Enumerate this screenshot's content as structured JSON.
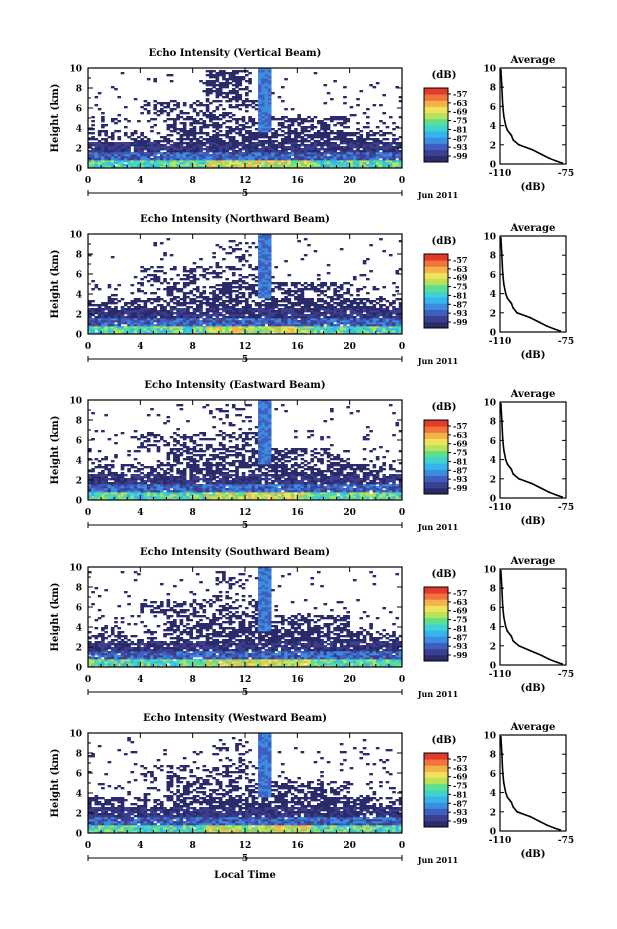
{
  "chart_data": {
    "type": "heatmap",
    "units_label": "(dB)",
    "colorbar_ticks": [
      "-57",
      "-63",
      "-69",
      "-75",
      "-81",
      "-87",
      "-93",
      "-99"
    ],
    "colors": [
      "#2a2b6b",
      "#3c3f8f",
      "#3f5fc0",
      "#3c8de0",
      "#35b4ee",
      "#3fd2cf",
      "#5ce08f",
      "#b6e35a",
      "#f0e25a",
      "#f5b24a",
      "#f0743c",
      "#e23a2c"
    ],
    "xlabel": "Local Time",
    "ylabel": "Height (km)",
    "xticks": [
      "0",
      "4",
      "8",
      "12",
      "16",
      "20",
      "0"
    ],
    "xlim": [
      0,
      24
    ],
    "ylim": [
      0,
      10
    ],
    "yticks": [
      "0",
      "2",
      "4",
      "6",
      "8",
      "10"
    ],
    "date_label": "Jun 2011",
    "day_label": "5",
    "avg_title": "Average",
    "avg_xlabel": "(dB)",
    "avg_xticks": [
      "-110",
      "-75"
    ],
    "avg_xlim": [
      -110,
      -75
    ],
    "avg_ylim": [
      0,
      10
    ],
    "avg_yticks": [
      "0",
      "2",
      "4",
      "6",
      "8",
      "10"
    ],
    "panels": [
      {
        "title": "Echo Intensity (Vertical Beam)",
        "avg_profile": {
          "height": [
            0.1,
            0.3,
            0.6,
            1.0,
            1.5,
            2.0,
            2.5,
            3.0,
            3.5,
            4.0,
            5.0,
            6.0,
            7.0,
            8.0,
            9.0,
            9.8
          ],
          "db": [
            -77,
            -80,
            -84,
            -88,
            -93,
            -100,
            -103,
            -104,
            -106,
            -107,
            -108,
            -108.5,
            -108.8,
            -109,
            -109.3,
            -109.5
          ]
        }
      },
      {
        "title": "Echo Intensity (Northward Beam)",
        "avg_profile": {
          "height": [
            0.1,
            0.3,
            0.6,
            1.0,
            1.5,
            2.0,
            2.5,
            3.0,
            3.5,
            4.0,
            5.0,
            6.0,
            7.0,
            8.0,
            9.0,
            9.8
          ],
          "db": [
            -78,
            -81,
            -85,
            -89,
            -94,
            -101,
            -103,
            -104,
            -106,
            -107,
            -108,
            -108.5,
            -108.8,
            -109,
            -109.3,
            -109.5
          ]
        }
      },
      {
        "title": "Echo Intensity (Eastward Beam)",
        "avg_profile": {
          "height": [
            0.1,
            0.3,
            0.6,
            1.0,
            1.5,
            2.0,
            2.5,
            3.0,
            3.5,
            4.0,
            5.0,
            6.0,
            7.0,
            8.0,
            9.0,
            9.8
          ],
          "db": [
            -77,
            -80,
            -84,
            -88,
            -93,
            -100,
            -103,
            -104,
            -106,
            -107,
            -108,
            -108.5,
            -108.8,
            -109,
            -109.3,
            -109.5
          ]
        }
      },
      {
        "title": "Echo Intensity (Southward Beam)",
        "avg_profile": {
          "height": [
            0.1,
            0.3,
            0.6,
            1.0,
            1.5,
            2.0,
            2.5,
            3.0,
            3.5,
            4.0,
            5.0,
            6.0,
            7.0,
            8.0,
            9.0,
            9.8
          ],
          "db": [
            -77,
            -80,
            -84,
            -88,
            -94,
            -100,
            -103,
            -104,
            -106,
            -107,
            -108,
            -108.5,
            -108.8,
            -109,
            -109.3,
            -109.5
          ]
        }
      },
      {
        "title": "Echo Intensity (Westward Beam)",
        "avg_profile": {
          "height": [
            0.1,
            0.3,
            0.6,
            1.0,
            1.5,
            2.0,
            2.5,
            3.0,
            3.5,
            4.0,
            5.0,
            6.0,
            7.0,
            8.0,
            9.0,
            9.8
          ],
          "db": [
            -78,
            -81,
            -85,
            -89,
            -94,
            -101,
            -103,
            -104,
            -106,
            -107,
            -108,
            -108.5,
            -108.8,
            -109,
            -109.3,
            -109.5
          ]
        }
      }
    ]
  }
}
